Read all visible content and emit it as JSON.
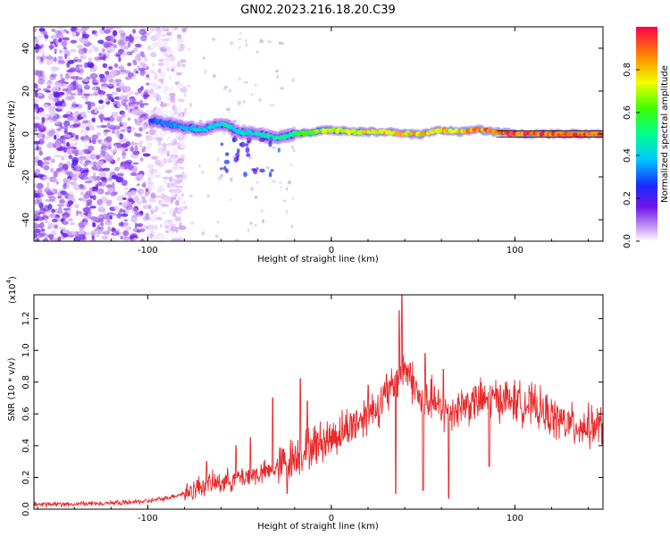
{
  "title": "GN02.2023.216.18.20.C39",
  "chart_data": [
    {
      "type": "heatmap",
      "xlabel": "Height of straight line (km)",
      "ylabel": "Frequency (Hz)",
      "xlim": [
        -162,
        148
      ],
      "ylim": [
        -50,
        50
      ],
      "x_ticks": [
        -100,
        0,
        100
      ],
      "y_ticks": [
        -40,
        -20,
        0,
        20,
        40
      ],
      "colorbar": {
        "label": "Normalized spectral amplitude",
        "range": [
          0.0,
          1.0
        ],
        "ticks": [
          "0.0",
          "0.2",
          "0.4",
          "0.6",
          "0.8"
        ],
        "tick_values": [
          0.0,
          0.2,
          0.4,
          0.6,
          0.8
        ]
      },
      "ridge": {
        "x": [
          -98,
          -90,
          -80,
          -70,
          -60,
          -50,
          -40,
          -30,
          -20,
          -10,
          0,
          10,
          20,
          30,
          40,
          50,
          60,
          70,
          80,
          90,
          100,
          110,
          120,
          130,
          140,
          148
        ],
        "freq": [
          6,
          5,
          3,
          2,
          5,
          1,
          0,
          -2,
          0,
          1,
          2,
          1,
          1,
          1,
          0,
          0,
          2,
          1,
          2,
          1,
          0,
          0,
          0,
          0,
          0,
          0
        ],
        "amplitude": [
          0.3,
          0.35,
          0.4,
          0.4,
          0.45,
          0.45,
          0.45,
          0.5,
          0.55,
          0.65,
          0.75,
          0.75,
          0.8,
          0.8,
          0.8,
          0.85,
          0.85,
          0.85,
          0.9,
          0.95,
          0.95,
          0.95,
          0.95,
          0.95,
          0.95,
          0.95
        ]
      }
    },
    {
      "type": "line",
      "xlabel": "Height of straight line (km)",
      "ylabel": "SNR (10 * v/v)",
      "y_multiplier": "(x10",
      "y_multiplier_exp": "4",
      "y_multiplier_close": ")",
      "xlim": [
        -162,
        148
      ],
      "ylim": [
        0,
        1.35
      ],
      "x_ticks": [
        -100,
        0,
        100
      ],
      "y_ticks": [
        0.0,
        0.2,
        0.4,
        0.6,
        0.8,
        1.0,
        1.2
      ],
      "series": [
        {
          "color": "#e8282a",
          "x": [
            -162,
            -140,
            -120,
            -100,
            -90,
            -80,
            -70,
            -60,
            -50,
            -40,
            -30,
            -25,
            -20,
            -10,
            0,
            10,
            20,
            30,
            35,
            40,
            45,
            50,
            55,
            60,
            65,
            70,
            80,
            90,
            100,
            110,
            120,
            130,
            140,
            148
          ],
          "values": [
            0.03,
            0.03,
            0.04,
            0.05,
            0.07,
            0.1,
            0.15,
            0.17,
            0.2,
            0.22,
            0.25,
            0.3,
            0.33,
            0.4,
            0.45,
            0.52,
            0.6,
            0.7,
            0.8,
            0.9,
            0.78,
            0.65,
            0.7,
            0.6,
            0.62,
            0.65,
            0.68,
            0.7,
            0.68,
            0.65,
            0.58,
            0.53,
            0.52,
            0.52
          ],
          "spikes": [
            {
              "x": -68,
              "y": 0.3
            },
            {
              "x": -52,
              "y": 0.4
            },
            {
              "x": -44,
              "y": 0.45
            },
            {
              "x": -32,
              "y": 0.7
            },
            {
              "x": -17,
              "y": 0.82
            },
            {
              "x": -13,
              "y": 0.68
            },
            {
              "x": 20,
              "y": 0.78
            },
            {
              "x": 30,
              "y": 0.85
            },
            {
              "x": 37,
              "y": 1.25
            },
            {
              "x": 38.5,
              "y": 1.35
            },
            {
              "x": 43,
              "y": 0.92
            },
            {
              "x": 51,
              "y": 0.98
            },
            {
              "x": 61,
              "y": 0.88
            },
            {
              "x": 92,
              "y": 0.78
            },
            {
              "x": 102,
              "y": 0.75
            }
          ],
          "dips": [
            {
              "x": -24,
              "y": 0.1
            },
            {
              "x": 35,
              "y": 0.1
            },
            {
              "x": 50,
              "y": 0.12
            },
            {
              "x": 64,
              "y": 0.07
            },
            {
              "x": 86,
              "y": 0.27
            }
          ]
        }
      ]
    }
  ]
}
